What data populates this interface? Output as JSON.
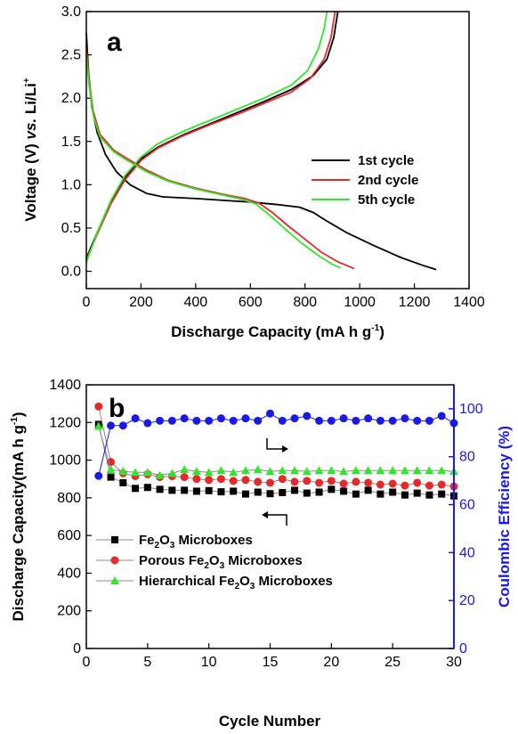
{
  "chart_data": [
    {
      "type": "line",
      "panel_label": "a",
      "xlabel": "Discharge Capacity (mA h g",
      "xlabel_sup": "-1",
      "xlabel_tail": ")",
      "ylabel": "Voltage (V) ",
      "ylabel_italic": "vs.",
      "ylabel_tail": " Li/Li",
      "ylabel_sup": "+",
      "xlim": [
        0,
        1400
      ],
      "ylim": [
        -0.2,
        3.0
      ],
      "xticks": [
        "0",
        "200",
        "400",
        "600",
        "800",
        "1000",
        "1200",
        "1400"
      ],
      "yticks": [
        "0.0",
        "0.5",
        "1.0",
        "1.5",
        "2.0",
        "2.5",
        "3.0"
      ],
      "legend_position": "right-middle",
      "series": [
        {
          "name": "1st cycle",
          "color": "#000000",
          "discharge": [
            [
              0,
              2.75
            ],
            [
              8,
              2.3
            ],
            [
              20,
              1.9
            ],
            [
              40,
              1.6
            ],
            [
              70,
              1.35
            ],
            [
              110,
              1.15
            ],
            [
              160,
              1.0
            ],
            [
              220,
              0.9
            ],
            [
              280,
              0.86
            ],
            [
              400,
              0.84
            ],
            [
              500,
              0.82
            ],
            [
              600,
              0.8
            ],
            [
              700,
              0.77
            ],
            [
              780,
              0.74
            ],
            [
              830,
              0.68
            ],
            [
              880,
              0.58
            ],
            [
              950,
              0.45
            ],
            [
              1050,
              0.3
            ],
            [
              1150,
              0.16
            ],
            [
              1230,
              0.07
            ],
            [
              1280,
              0.02
            ]
          ],
          "charge": [
            [
              0,
              0.15
            ],
            [
              40,
              0.45
            ],
            [
              90,
              0.8
            ],
            [
              140,
              1.08
            ],
            [
              200,
              1.3
            ],
            [
              260,
              1.43
            ],
            [
              350,
              1.57
            ],
            [
              450,
              1.7
            ],
            [
              550,
              1.83
            ],
            [
              650,
              1.96
            ],
            [
              750,
              2.1
            ],
            [
              830,
              2.26
            ],
            [
              880,
              2.45
            ],
            [
              905,
              2.7
            ],
            [
              920,
              3.0
            ]
          ]
        },
        {
          "name": "2nd cycle",
          "color": "#e8292a",
          "discharge": [
            [
              0,
              2.6
            ],
            [
              10,
              2.2
            ],
            [
              25,
              1.85
            ],
            [
              50,
              1.58
            ],
            [
              100,
              1.4
            ],
            [
              150,
              1.3
            ],
            [
              220,
              1.17
            ],
            [
              300,
              1.05
            ],
            [
              400,
              0.96
            ],
            [
              500,
              0.89
            ],
            [
              580,
              0.84
            ],
            [
              630,
              0.79
            ],
            [
              680,
              0.68
            ],
            [
              740,
              0.52
            ],
            [
              800,
              0.37
            ],
            [
              860,
              0.22
            ],
            [
              920,
              0.11
            ],
            [
              980,
              0.03
            ]
          ],
          "charge": [
            [
              0,
              0.13
            ],
            [
              40,
              0.43
            ],
            [
              90,
              0.78
            ],
            [
              140,
              1.05
            ],
            [
              200,
              1.28
            ],
            [
              260,
              1.42
            ],
            [
              350,
              1.56
            ],
            [
              450,
              1.69
            ],
            [
              550,
              1.81
            ],
            [
              650,
              1.94
            ],
            [
              750,
              2.07
            ],
            [
              820,
              2.23
            ],
            [
              870,
              2.45
            ],
            [
              895,
              2.7
            ],
            [
              910,
              3.0
            ]
          ]
        },
        {
          "name": "5th cycle",
          "color": "#2ee82a",
          "discharge": [
            [
              0,
              2.5
            ],
            [
              10,
              2.15
            ],
            [
              25,
              1.8
            ],
            [
              50,
              1.55
            ],
            [
              100,
              1.38
            ],
            [
              150,
              1.28
            ],
            [
              220,
              1.15
            ],
            [
              300,
              1.04
            ],
            [
              400,
              0.95
            ],
            [
              500,
              0.88
            ],
            [
              570,
              0.83
            ],
            [
              620,
              0.78
            ],
            [
              670,
              0.65
            ],
            [
              730,
              0.48
            ],
            [
              790,
              0.32
            ],
            [
              850,
              0.18
            ],
            [
              900,
              0.08
            ],
            [
              930,
              0.04
            ]
          ],
          "charge": [
            [
              0,
              0.1
            ],
            [
              40,
              0.45
            ],
            [
              90,
              0.82
            ],
            [
              140,
              1.1
            ],
            [
              200,
              1.32
            ],
            [
              260,
              1.47
            ],
            [
              350,
              1.61
            ],
            [
              450,
              1.74
            ],
            [
              550,
              1.87
            ],
            [
              650,
              2.0
            ],
            [
              750,
              2.15
            ],
            [
              810,
              2.32
            ],
            [
              850,
              2.58
            ],
            [
              870,
              2.8
            ],
            [
              880,
              3.0
            ]
          ]
        }
      ]
    },
    {
      "type": "scatter",
      "panel_label": "b",
      "xlabel": "Cycle Number",
      "ylabel": "Discharge Capacity(mA h g",
      "ylabel_sup": "-1",
      "ylabel_tail": ")",
      "ylabel_right": "Coulombic Efficiency (%)",
      "xlim": [
        0,
        30
      ],
      "ylim": [
        0,
        1400
      ],
      "ylim_right": [
        0,
        110
      ],
      "xticks": [
        "0",
        "5",
        "10",
        "15",
        "20",
        "25",
        "30"
      ],
      "yticks": [
        "0",
        "200",
        "400",
        "600",
        "800",
        "1000",
        "1200",
        "1400"
      ],
      "yticks_right": [
        "0",
        "20",
        "40",
        "60",
        "80",
        "100"
      ],
      "legend_position": "bottom-left",
      "axis_colors": {
        "left": "#000000",
        "right": "#1a1ae6"
      },
      "legend": [
        {
          "pre": "Fe",
          "sub1": "2",
          "mid": "O",
          "sub2": "3",
          "post": " Microboxes"
        },
        {
          "pre": "Porous Fe",
          "sub1": "2",
          "mid": "O",
          "sub2": "3",
          "post": " Microboxes"
        },
        {
          "pre": "Hierarchical Fe",
          "sub1": "2",
          "mid": "O",
          "sub2": "3",
          "post": " Microboxes"
        }
      ],
      "series": [
        {
          "name": "Fe2O3 Microboxes",
          "marker": "square",
          "color": "#000000",
          "x": [
            1,
            2,
            3,
            4,
            5,
            6,
            7,
            8,
            9,
            10,
            11,
            12,
            13,
            14,
            15,
            16,
            17,
            18,
            19,
            20,
            21,
            22,
            23,
            24,
            25,
            26,
            27,
            28,
            29,
            30
          ],
          "values": [
            1190,
            910,
            880,
            850,
            855,
            845,
            840,
            840,
            835,
            838,
            832,
            835,
            820,
            830,
            822,
            828,
            840,
            825,
            830,
            845,
            835,
            820,
            840,
            820,
            830,
            815,
            825,
            815,
            820,
            810
          ]
        },
        {
          "name": "Porous Fe2O3 Microboxes",
          "marker": "circle",
          "color": "#e8292a",
          "x": [
            1,
            2,
            3,
            4,
            5,
            6,
            7,
            8,
            9,
            10,
            11,
            12,
            13,
            14,
            15,
            16,
            17,
            18,
            19,
            20,
            21,
            22,
            23,
            24,
            25,
            26,
            27,
            28,
            29,
            30
          ],
          "values": [
            1285,
            990,
            930,
            915,
            925,
            910,
            915,
            910,
            900,
            895,
            900,
            890,
            895,
            885,
            880,
            900,
            885,
            890,
            880,
            890,
            875,
            885,
            880,
            870,
            875,
            865,
            880,
            865,
            870,
            860
          ]
        },
        {
          "name": "Hierarchical Fe2O3 Microboxes",
          "marker": "triangle",
          "color": "#2ee82a",
          "x": [
            1,
            2,
            3,
            4,
            5,
            6,
            7,
            8,
            9,
            10,
            11,
            12,
            13,
            14,
            15,
            16,
            17,
            18,
            19,
            20,
            21,
            22,
            23,
            24,
            25,
            26,
            27,
            28,
            29,
            30
          ],
          "values": [
            1180,
            950,
            940,
            935,
            935,
            920,
            930,
            950,
            940,
            935,
            945,
            935,
            945,
            950,
            940,
            945,
            945,
            940,
            945,
            945,
            940,
            945,
            945,
            945,
            945,
            945,
            945,
            945,
            945,
            940
          ]
        },
        {
          "name": "Coulombic Efficiency",
          "marker": "circle",
          "color": "#1a1ae6",
          "axis": "right",
          "x": [
            1,
            2,
            3,
            4,
            5,
            6,
            7,
            8,
            9,
            10,
            11,
            12,
            13,
            14,
            15,
            16,
            17,
            18,
            19,
            20,
            21,
            22,
            23,
            24,
            25,
            26,
            27,
            28,
            29,
            30
          ],
          "values": [
            72,
            93,
            93,
            96,
            94,
            95,
            95,
            96,
            95,
            95,
            96,
            95,
            96,
            95,
            98,
            95,
            96,
            97,
            95,
            95,
            96,
            95,
            96,
            95,
            95,
            96,
            95,
            95,
            97,
            94
          ]
        }
      ]
    }
  ]
}
